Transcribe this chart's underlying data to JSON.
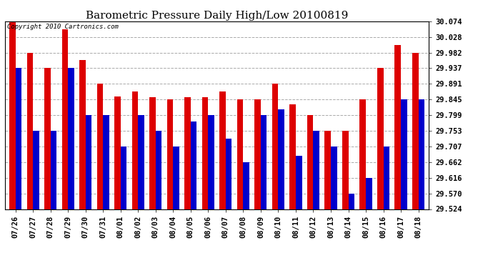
{
  "title": "Barometric Pressure Daily High/Low 20100819",
  "copyright": "Copyright 2010 Cartronics.com",
  "dates": [
    "07/26",
    "07/27",
    "07/28",
    "07/29",
    "07/30",
    "07/31",
    "08/01",
    "08/02",
    "08/03",
    "08/04",
    "08/05",
    "08/06",
    "08/07",
    "08/08",
    "08/09",
    "08/10",
    "08/11",
    "08/12",
    "08/13",
    "08/14",
    "08/15",
    "08/16",
    "08/17",
    "08/18"
  ],
  "highs": [
    30.074,
    29.982,
    29.937,
    30.051,
    29.96,
    29.891,
    29.855,
    29.868,
    29.851,
    29.845,
    29.851,
    29.851,
    29.868,
    29.845,
    29.845,
    29.891,
    29.83,
    29.799,
    29.753,
    29.753,
    29.845,
    29.937,
    30.005,
    29.982
  ],
  "lows": [
    29.937,
    29.753,
    29.753,
    29.937,
    29.8,
    29.799,
    29.707,
    29.799,
    29.753,
    29.707,
    29.78,
    29.799,
    29.73,
    29.662,
    29.799,
    29.816,
    29.68,
    29.753,
    29.707,
    29.57,
    29.616,
    29.707,
    29.845,
    29.845
  ],
  "ylim_min": 29.524,
  "ylim_max": 30.074,
  "yticks": [
    29.524,
    29.57,
    29.616,
    29.662,
    29.707,
    29.753,
    29.799,
    29.845,
    29.891,
    29.937,
    29.982,
    30.028,
    30.074
  ],
  "bar_width": 0.35,
  "high_color": "#dd0000",
  "low_color": "#0000cc",
  "bg_color": "#ffffff",
  "grid_color": "#aaaaaa",
  "title_fontsize": 11,
  "tick_fontsize": 7.5,
  "copyright_fontsize": 6.5,
  "figwidth": 6.9,
  "figheight": 3.75,
  "dpi": 100
}
